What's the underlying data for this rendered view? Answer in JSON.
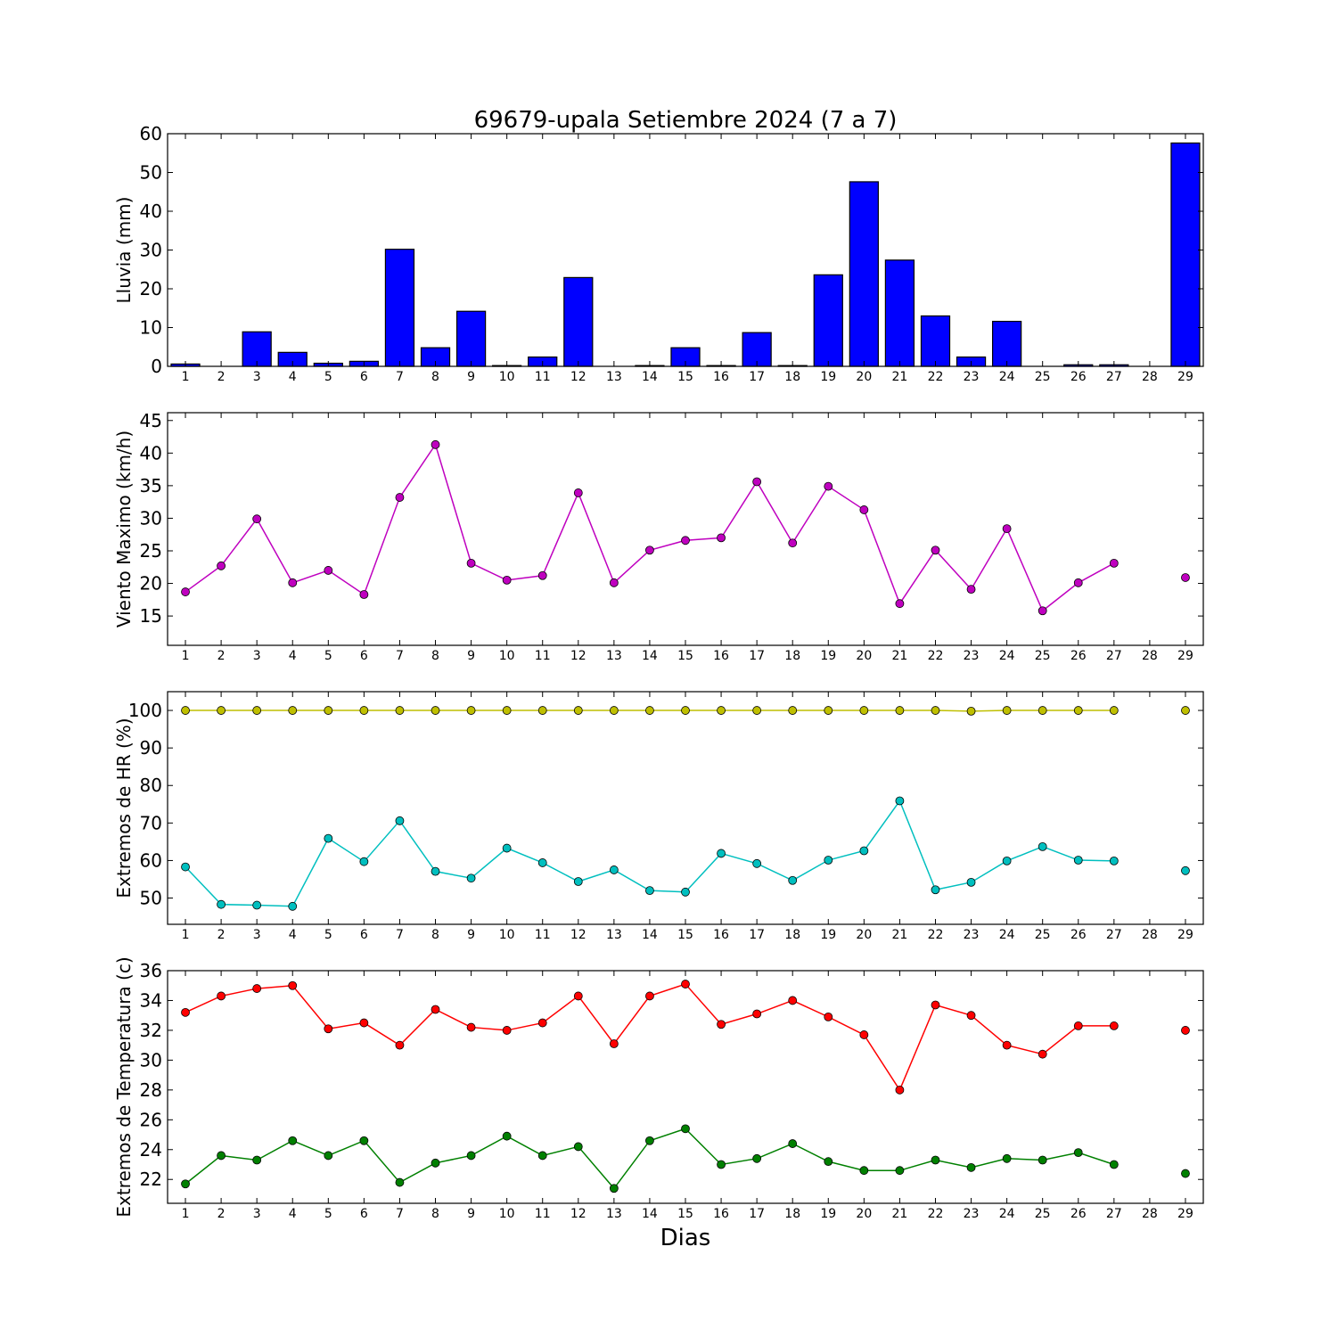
{
  "figure": {
    "title": "69679-upala Setiembre 2024  (7 a 7)",
    "xlabel": "Dias"
  },
  "chart_data": [
    {
      "type": "bar",
      "ylabel": "Lluvia (mm)",
      "ylim": [
        0,
        60
      ],
      "yticks": [
        0,
        10,
        20,
        30,
        40,
        50,
        60
      ],
      "color": "#0000ff",
      "categories": [
        1,
        2,
        3,
        4,
        5,
        6,
        7,
        8,
        9,
        10,
        11,
        12,
        13,
        14,
        15,
        16,
        17,
        18,
        19,
        20,
        21,
        22,
        23,
        24,
        25,
        26,
        27,
        28,
        29
      ],
      "values": [
        0.6,
        0,
        8.9,
        3.6,
        0.8,
        1.3,
        30.2,
        4.8,
        14.2,
        0.2,
        2.4,
        22.9,
        0,
        0.2,
        4.8,
        0.2,
        8.7,
        0.2,
        23.6,
        47.6,
        27.4,
        13,
        2.4,
        11.6,
        0,
        0.4,
        0.4,
        0,
        57.6
      ]
    },
    {
      "type": "line",
      "ylabel": "Viento Maximo (km/h)",
      "ylim": [
        10.5,
        46.2
      ],
      "yticks": [
        15,
        20,
        25,
        30,
        35,
        40,
        45
      ],
      "x": [
        1,
        2,
        3,
        4,
        5,
        6,
        7,
        8,
        9,
        10,
        11,
        12,
        13,
        14,
        15,
        16,
        17,
        18,
        19,
        20,
        21,
        22,
        23,
        24,
        25,
        26,
        27,
        28,
        29
      ],
      "series": [
        {
          "color": "#bf00bf",
          "values": [
            18.7,
            22.7,
            29.9,
            20.1,
            22,
            18.3,
            33.2,
            41.3,
            23.1,
            20.5,
            21.2,
            33.9,
            20.1,
            25.1,
            26.6,
            27,
            35.6,
            26.2,
            34.9,
            31.3,
            16.9,
            25.1,
            19.1,
            28.4,
            15.8,
            20.1,
            23.1,
            null,
            20.9
          ]
        }
      ]
    },
    {
      "type": "line",
      "ylabel": "Extremos de HR (%)",
      "ylim": [
        43,
        105
      ],
      "yticks": [
        50,
        60,
        70,
        80,
        90,
        100
      ],
      "x": [
        1,
        2,
        3,
        4,
        5,
        6,
        7,
        8,
        9,
        10,
        11,
        12,
        13,
        14,
        15,
        16,
        17,
        18,
        19,
        20,
        21,
        22,
        23,
        24,
        25,
        26,
        27,
        28,
        29
      ],
      "series": [
        {
          "color": "#bfbf00",
          "values": [
            100,
            100,
            100,
            100,
            100,
            100,
            100,
            100,
            100,
            100,
            100,
            100,
            100,
            100,
            100,
            100,
            100,
            100,
            100,
            100,
            100,
            100,
            99.8,
            100,
            100,
            100,
            100,
            null,
            100
          ]
        },
        {
          "color": "#00bfbf",
          "values": [
            58.3,
            48.3,
            48.1,
            47.8,
            65.9,
            59.7,
            70.6,
            57.1,
            55.3,
            63.3,
            59.4,
            54.4,
            57.5,
            52,
            51.6,
            61.9,
            59.2,
            54.7,
            60.1,
            62.6,
            75.9,
            52.2,
            54.2,
            59.9,
            63.7,
            60.1,
            59.9,
            null,
            57.3
          ]
        }
      ]
    },
    {
      "type": "line",
      "ylabel": "Extremos de Temperatura (c)",
      "ylim": [
        20.4,
        36.0
      ],
      "yticks": [
        22,
        24,
        26,
        28,
        30,
        32,
        34,
        36
      ],
      "x": [
        1,
        2,
        3,
        4,
        5,
        6,
        7,
        8,
        9,
        10,
        11,
        12,
        13,
        14,
        15,
        16,
        17,
        18,
        19,
        20,
        21,
        22,
        23,
        24,
        25,
        26,
        27,
        28,
        29
      ],
      "series": [
        {
          "color": "#ff0000",
          "values": [
            33.2,
            34.3,
            34.8,
            35,
            32.1,
            32.5,
            31,
            33.4,
            32.2,
            32,
            32.5,
            34.3,
            31.1,
            34.3,
            35.1,
            32.4,
            33.1,
            34,
            32.9,
            31.7,
            28,
            33.7,
            33,
            31,
            30.4,
            32.3,
            32.3,
            null,
            32
          ]
        },
        {
          "color": "#008000",
          "values": [
            21.7,
            23.6,
            23.3,
            24.6,
            23.6,
            24.6,
            21.8,
            23.1,
            23.6,
            24.9,
            23.6,
            24.2,
            21.4,
            24.6,
            25.4,
            23,
            23.4,
            24.4,
            23.2,
            22.6,
            22.6,
            23.3,
            22.8,
            23.4,
            23.3,
            23.8,
            23,
            null,
            22.4
          ]
        }
      ]
    }
  ]
}
